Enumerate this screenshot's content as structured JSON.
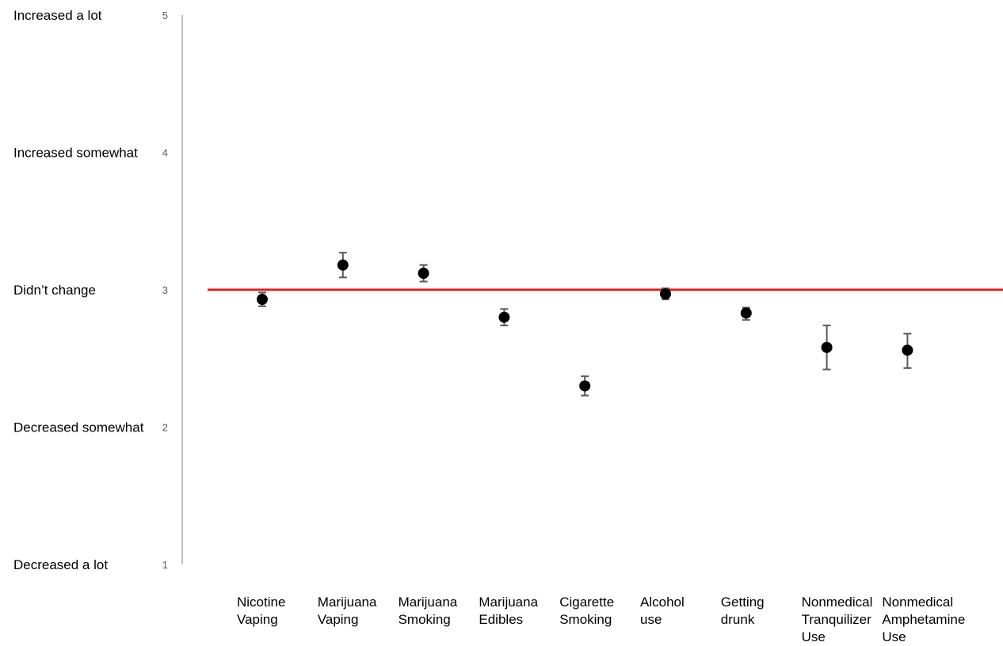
{
  "chart_data": {
    "type": "scatter",
    "ylim": [
      1,
      5
    ],
    "yticks": [
      {
        "value": 5,
        "tick_label": "5",
        "label": "Increased a lot"
      },
      {
        "value": 4,
        "tick_label": "4",
        "label": "Increased somewhat"
      },
      {
        "value": 3,
        "tick_label": "3",
        "label": "Didn’t change"
      },
      {
        "value": 2,
        "tick_label": "2",
        "label": "Decreased somewhat"
      },
      {
        "value": 1,
        "tick_label": "1",
        "label": "Decreased a lot"
      }
    ],
    "reference_line": {
      "value": 3,
      "color": "#e02020"
    },
    "marker_color": "#000000",
    "errorbar_color": "#595959",
    "axis_color": "#bfbfbf",
    "grid": false,
    "legend": "none",
    "points": [
      {
        "category": "Nicotine Vaping",
        "label_lines": [
          "Nicotine",
          "Vaping"
        ],
        "value": 2.93,
        "lower": 2.88,
        "upper": 2.98
      },
      {
        "category": "Marijuana Vaping",
        "label_lines": [
          "Marijuana",
          "Vaping"
        ],
        "value": 3.18,
        "lower": 3.09,
        "upper": 3.27
      },
      {
        "category": "Marijuana Smoking",
        "label_lines": [
          "Marijuana",
          "Smoking"
        ],
        "value": 3.12,
        "lower": 3.06,
        "upper": 3.18
      },
      {
        "category": "Marijuana Edibles",
        "label_lines": [
          "Marijuana",
          "Edibles"
        ],
        "value": 2.8,
        "lower": 2.74,
        "upper": 2.86
      },
      {
        "category": "Cigarette Smoking",
        "label_lines": [
          "Cigarette",
          "Smoking"
        ],
        "value": 2.3,
        "lower": 2.23,
        "upper": 2.37
      },
      {
        "category": "Alcohol use",
        "label_lines": [
          "Alcohol",
          "use"
        ],
        "value": 2.97,
        "lower": 2.93,
        "upper": 3.01
      },
      {
        "category": "Getting drunk",
        "label_lines": [
          "Getting",
          "drunk"
        ],
        "value": 2.83,
        "lower": 2.78,
        "upper": 2.87
      },
      {
        "category": "Nonmedical Tranquilizer Use",
        "label_lines": [
          "Nonmedical",
          "Tranquilizer",
          "Use"
        ],
        "value": 2.58,
        "lower": 2.42,
        "upper": 2.74
      },
      {
        "category": "Nonmedical Amphetamine Use",
        "label_lines": [
          "Nonmedical",
          "Amphetamine",
          "Use"
        ],
        "value": 2.56,
        "lower": 2.43,
        "upper": 2.68
      }
    ]
  }
}
